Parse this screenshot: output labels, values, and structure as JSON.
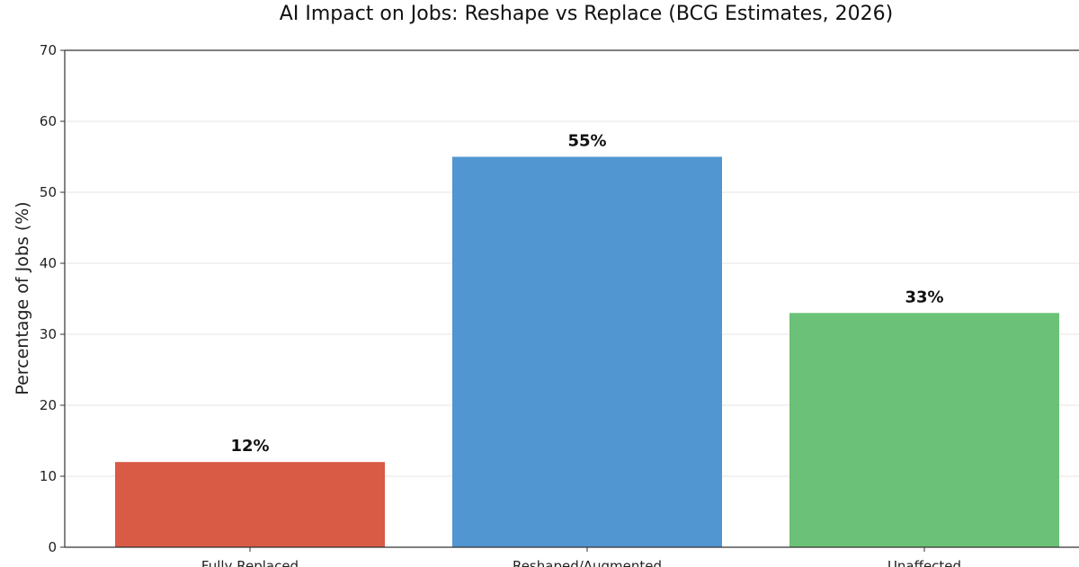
{
  "chart_data": {
    "type": "bar",
    "title": "AI Impact on Jobs: Reshape vs Replace (BCG Estimates, 2026)",
    "xlabel": "",
    "ylabel": "Percentage of Jobs (%)",
    "ylim": [
      0,
      70
    ],
    "yticks": [
      0,
      10,
      20,
      30,
      40,
      50,
      60,
      70
    ],
    "grid": true,
    "categories": [
      "Fully Replaced",
      "Reshaped/Augmented",
      "Unaffected"
    ],
    "values": [
      12,
      55,
      33
    ],
    "value_labels": [
      "12%",
      "55%",
      "33%"
    ],
    "colors": [
      "#d95a45",
      "#5196d1",
      "#6bc177"
    ]
  }
}
